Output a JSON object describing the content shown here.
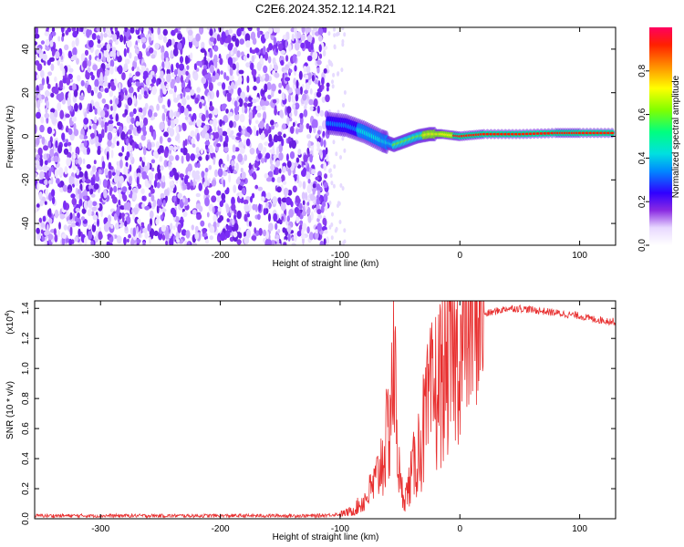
{
  "title": "C2E6.2024.352.12.14.R21",
  "chart_data": [
    {
      "type": "heatmap",
      "xlabel": "Height of straight line (km)",
      "ylabel": "Frequency (Hz)",
      "xlim": [
        -355,
        130
      ],
      "ylim": [
        -50,
        50
      ],
      "xticks": [
        -300,
        -200,
        -100,
        0,
        100
      ],
      "yticks": [
        -40,
        -20,
        0,
        20,
        40
      ],
      "colorbar": {
        "label": "Normalized spectral amplitude",
        "range": [
          0,
          1
        ],
        "ticks": [
          "0.0",
          "0.2",
          "0.4",
          "0.6",
          "0.8"
        ]
      },
      "features": {
        "noise_region_x": [
          -355,
          -110
        ],
        "signal_track": [
          {
            "x": -110,
            "y": 6
          },
          {
            "x": -95,
            "y": 5
          },
          {
            "x": -80,
            "y": 2
          },
          {
            "x": -65,
            "y": -2
          },
          {
            "x": -55,
            "y": -4
          },
          {
            "x": -45,
            "y": -2
          },
          {
            "x": -35,
            "y": 0
          },
          {
            "x": -25,
            "y": 1
          },
          {
            "x": -15,
            "y": 1
          },
          {
            "x": 0,
            "y": 0
          },
          {
            "x": 20,
            "y": 1
          },
          {
            "x": 50,
            "y": 1
          },
          {
            "x": 80,
            "y": 1.5
          },
          {
            "x": 100,
            "y": 1.5
          },
          {
            "x": 130,
            "y": 1.5
          }
        ]
      }
    },
    {
      "type": "line",
      "xlabel": "Height of straight line (km)",
      "ylabel": "SNR (10 * v/v)",
      "y_multiplier": "(x10",
      "y_multiplier_exp": "4",
      "y_multiplier_close": ")",
      "xlim": [
        -355,
        130
      ],
      "ylim": [
        0,
        1.45
      ],
      "xticks": [
        -300,
        -200,
        -100,
        0,
        100
      ],
      "yticks": [
        "0.0",
        "0.2",
        "0.4",
        "0.6",
        "0.8",
        "1.0",
        "1.2",
        "1.4"
      ],
      "color": "#e83030",
      "series": [
        {
          "x": [
            -355,
            -300,
            -250,
            -200,
            -150,
            -120,
            -100,
            -90,
            -80,
            -70,
            -65,
            -60,
            -57,
            -55,
            -52,
            -50,
            -45,
            -40,
            -35,
            -30,
            -25,
            -20,
            -15,
            -10,
            -5,
            0,
            5,
            10,
            20,
            30,
            40,
            50,
            60,
            70,
            80,
            90,
            100,
            110,
            120,
            130
          ],
          "y": [
            0.02,
            0.02,
            0.02,
            0.02,
            0.02,
            0.02,
            0.03,
            0.05,
            0.12,
            0.25,
            0.4,
            0.55,
            0.9,
            1.0,
            0.55,
            0.2,
            0.15,
            0.3,
            0.45,
            0.6,
            0.75,
            0.85,
            0.95,
            1.0,
            1.05,
            1.1,
            1.2,
            1.3,
            1.36,
            1.38,
            1.4,
            1.4,
            1.39,
            1.38,
            1.37,
            1.36,
            1.35,
            1.33,
            1.32,
            1.31
          ]
        }
      ]
    }
  ]
}
